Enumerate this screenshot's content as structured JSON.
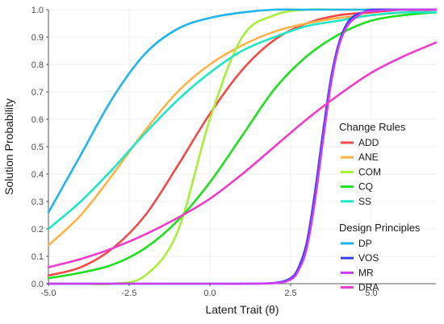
{
  "chart_data": {
    "type": "line",
    "xlabel": "Latent Trait (θ)",
    "ylabel": "Solution Probability",
    "xlim": [
      -5,
      7
    ],
    "ylim": [
      0,
      1
    ],
    "x_ticks": [
      -5.0,
      -2.5,
      0.0,
      2.5,
      5.0
    ],
    "x_tick_labels": [
      "-5.0",
      "-2.5",
      "0.0",
      "2.5",
      "5.0"
    ],
    "y_ticks": [
      0,
      0.1,
      0.2,
      0.3,
      0.4,
      0.5,
      0.6,
      0.7,
      0.8,
      0.9,
      1.0
    ],
    "y_tick_labels": [
      "0.0",
      "0.1",
      "0.2",
      "0.3",
      "0.4",
      "0.5",
      "0.6",
      "0.7",
      "0.8",
      "0.9",
      "1.0"
    ],
    "grid": true,
    "legend_placement": "right",
    "legend_groups": [
      {
        "title": "Change Rules",
        "series": [
          "ADD",
          "ANE",
          "COM",
          "CQ",
          "SS"
        ]
      },
      {
        "title": "Design Principles",
        "series": [
          "DP",
          "VOS",
          "MR",
          "DRA"
        ]
      }
    ],
    "series": [
      {
        "name": "ADD",
        "color": "#f54848",
        "x": [
          -5,
          -4,
          -3,
          -2,
          -1,
          0,
          1,
          2,
          3,
          4,
          5,
          6,
          7
        ],
        "y": [
          0.03,
          0.06,
          0.13,
          0.25,
          0.43,
          0.62,
          0.78,
          0.89,
          0.95,
          0.98,
          0.99,
          1.0,
          1.0
        ]
      },
      {
        "name": "ANE",
        "color": "#ffb347",
        "x": [
          -5,
          -4,
          -3,
          -2,
          -1,
          0,
          1,
          2,
          3,
          4,
          5,
          6,
          7
        ],
        "y": [
          0.14,
          0.25,
          0.4,
          0.56,
          0.7,
          0.8,
          0.87,
          0.92,
          0.95,
          0.97,
          0.98,
          0.99,
          1.0
        ]
      },
      {
        "name": "COM",
        "color": "#a6f03c",
        "x": [
          -5,
          -4,
          -3,
          -2,
          -1,
          0,
          1,
          2,
          3,
          4,
          5,
          6,
          7
        ],
        "y": [
          0.0,
          0.0,
          0.0,
          0.03,
          0.19,
          0.6,
          0.9,
          0.98,
          1.0,
          1.0,
          1.0,
          1.0,
          1.0
        ]
      },
      {
        "name": "CQ",
        "color": "#1ee01e",
        "x": [
          -5,
          -4,
          -3,
          -2,
          -1,
          0,
          1,
          2,
          3,
          4,
          5,
          6,
          7
        ],
        "y": [
          0.02,
          0.04,
          0.07,
          0.13,
          0.23,
          0.37,
          0.54,
          0.71,
          0.83,
          0.91,
          0.96,
          0.98,
          0.99
        ]
      },
      {
        "name": "SS",
        "color": "#1ee8c4",
        "x": [
          -5,
          -4,
          -3,
          -2,
          -1,
          0,
          1,
          2,
          3,
          4,
          5,
          6,
          7
        ],
        "y": [
          0.2,
          0.3,
          0.42,
          0.55,
          0.67,
          0.77,
          0.85,
          0.9,
          0.94,
          0.96,
          0.98,
          0.99,
          0.99
        ]
      },
      {
        "name": "DP",
        "color": "#20b4f0",
        "x": [
          -5,
          -4,
          -3,
          -2,
          -1,
          0,
          1,
          2,
          3,
          4,
          5,
          6,
          7
        ],
        "y": [
          0.26,
          0.47,
          0.68,
          0.84,
          0.93,
          0.97,
          0.99,
          1.0,
          1.0,
          1.0,
          1.0,
          1.0,
          1.0
        ]
      },
      {
        "name": "VOS",
        "color": "#3c3cf0",
        "x": [
          -5,
          0,
          1,
          2,
          2.5,
          2.75,
          3,
          3.25,
          3.5,
          3.75,
          4,
          4.25,
          4.5,
          4.75,
          5,
          6,
          7
        ],
        "y": [
          0.0,
          0.0,
          0.0,
          0.003,
          0.02,
          0.06,
          0.15,
          0.33,
          0.55,
          0.75,
          0.88,
          0.95,
          0.98,
          0.99,
          1.0,
          1.0,
          1.0
        ]
      },
      {
        "name": "MR",
        "color": "#cc3cf0",
        "x": [
          -5,
          0,
          1,
          2,
          2.5,
          2.75,
          3,
          3.25,
          3.5,
          3.75,
          4,
          4.25,
          4.5,
          4.75,
          5,
          6,
          7
        ],
        "y": [
          0.0,
          0.0,
          0.0,
          0.002,
          0.015,
          0.05,
          0.13,
          0.3,
          0.52,
          0.73,
          0.87,
          0.94,
          0.97,
          0.99,
          0.995,
          1.0,
          1.0
        ]
      },
      {
        "name": "DRA",
        "color": "#f03cc8",
        "x": [
          -5,
          -4,
          -3,
          -2,
          -1,
          0,
          1,
          2,
          3,
          4,
          5,
          6,
          7
        ],
        "y": [
          0.06,
          0.09,
          0.13,
          0.18,
          0.24,
          0.31,
          0.4,
          0.5,
          0.6,
          0.69,
          0.77,
          0.83,
          0.88
        ]
      }
    ]
  }
}
